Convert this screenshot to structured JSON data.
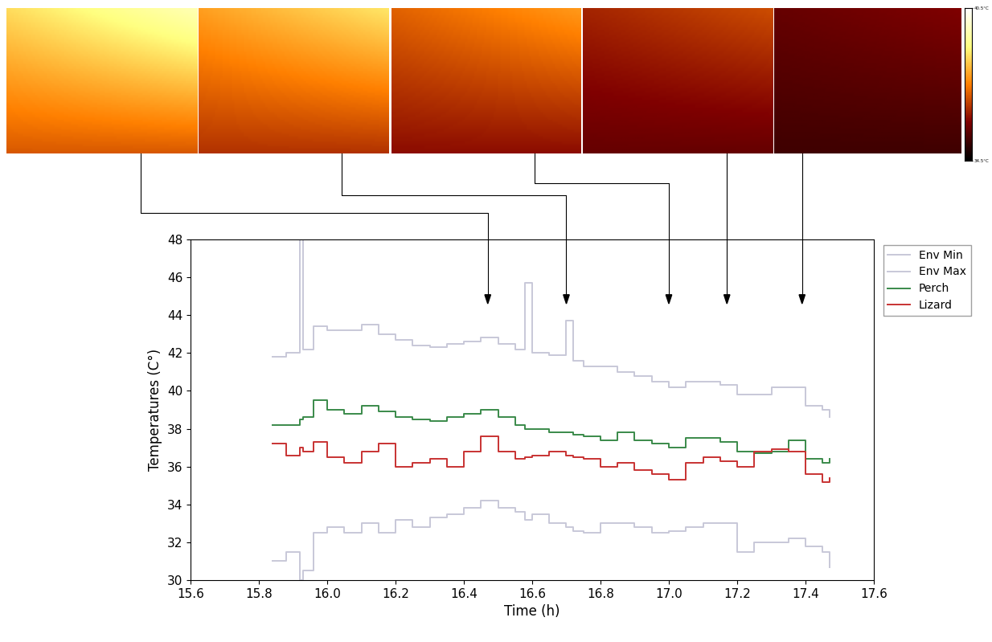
{
  "chart_data": {
    "type": "line",
    "x_label": "Time (h)",
    "y_label": "Temperatures (C°)",
    "x": [
      15.84,
      15.88,
      15.92,
      15.93,
      15.96,
      16.0,
      16.05,
      16.1,
      16.15,
      16.2,
      16.25,
      16.3,
      16.35,
      16.4,
      16.45,
      16.5,
      16.55,
      16.58,
      16.6,
      16.65,
      16.7,
      16.72,
      16.75,
      16.8,
      16.85,
      16.9,
      16.95,
      17.0,
      17.05,
      17.1,
      17.15,
      17.2,
      17.25,
      17.3,
      17.35,
      17.4,
      17.45,
      17.47
    ],
    "series": [
      {
        "name": "Env Min",
        "color": "#c8c8d8",
        "values": [
          31.0,
          31.5,
          30.0,
          30.5,
          32.5,
          32.8,
          32.5,
          33.0,
          32.5,
          33.2,
          32.8,
          33.3,
          33.5,
          33.8,
          34.2,
          33.8,
          33.6,
          33.2,
          33.5,
          33.0,
          32.8,
          32.6,
          32.5,
          33.0,
          33.0,
          32.8,
          32.5,
          32.6,
          32.8,
          33.0,
          33.0,
          31.5,
          32.0,
          32.0,
          32.2,
          31.8,
          31.5,
          30.7
        ]
      },
      {
        "name": "Env Max",
        "color": "#c8c8d8",
        "values": [
          41.8,
          42.0,
          48.0,
          42.2,
          43.4,
          43.2,
          43.2,
          43.5,
          43.0,
          42.7,
          42.4,
          42.3,
          42.5,
          42.6,
          42.8,
          42.5,
          42.2,
          45.7,
          42.0,
          41.9,
          43.7,
          41.6,
          41.3,
          41.3,
          41.0,
          40.8,
          40.5,
          40.2,
          40.5,
          40.5,
          40.3,
          39.8,
          39.8,
          40.2,
          40.2,
          39.2,
          39.0,
          38.6
        ]
      },
      {
        "name": "Perch",
        "color": "#3a8a4a",
        "values": [
          38.2,
          38.2,
          38.5,
          38.6,
          39.5,
          39.0,
          38.8,
          39.2,
          38.9,
          38.6,
          38.5,
          38.4,
          38.6,
          38.8,
          39.0,
          38.6,
          38.2,
          38.0,
          38.0,
          37.8,
          37.8,
          37.7,
          37.6,
          37.4,
          37.8,
          37.4,
          37.2,
          37.0,
          37.5,
          37.5,
          37.3,
          36.8,
          36.7,
          36.8,
          37.4,
          36.4,
          36.2,
          36.4
        ]
      },
      {
        "name": "Lizard",
        "color": "#c83232",
        "values": [
          37.2,
          36.6,
          37.0,
          36.8,
          37.3,
          36.5,
          36.2,
          36.8,
          37.2,
          36.0,
          36.2,
          36.4,
          36.0,
          36.8,
          37.6,
          36.8,
          36.4,
          36.5,
          36.6,
          36.8,
          36.6,
          36.5,
          36.4,
          36.0,
          36.2,
          35.8,
          35.6,
          35.3,
          36.2,
          36.5,
          36.3,
          36.0,
          36.8,
          36.9,
          36.8,
          35.6,
          35.2,
          35.4
        ]
      }
    ],
    "xlim": [
      15.6,
      17.6
    ],
    "xticks": [
      15.6,
      15.8,
      16.0,
      16.2,
      16.4,
      16.6,
      16.8,
      17.0,
      17.2,
      17.4,
      17.6
    ],
    "ylim": [
      30,
      48
    ],
    "yticks": [
      30,
      32,
      34,
      36,
      38,
      40,
      42,
      44,
      46,
      48
    ],
    "grid": false,
    "legend": "upper right",
    "image_times": [
      16.47,
      16.7,
      17.0,
      17.17,
      17.39
    ],
    "colorbar_range": [
      34.5,
      40.5
    ],
    "colorbar_ticks": [
      {
        "value": 34.5,
        "label": "34.5°C"
      },
      {
        "value": 40.5,
        "label": "40.5°C"
      }
    ]
  }
}
